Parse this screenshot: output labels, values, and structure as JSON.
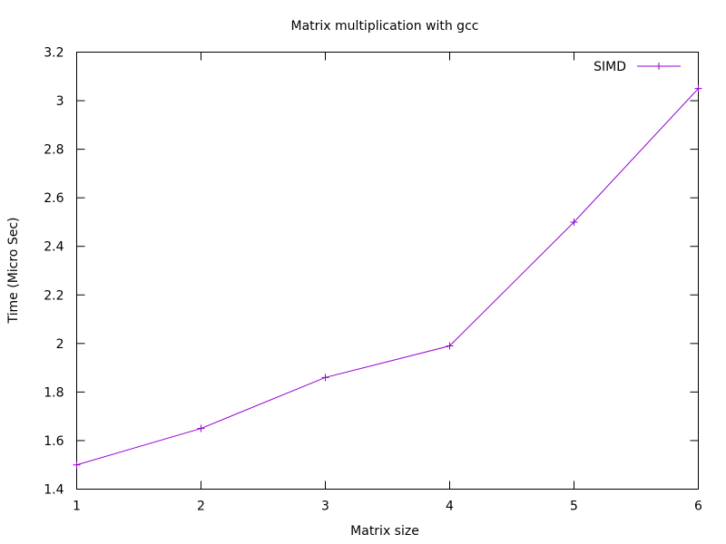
{
  "chart_data": {
    "type": "line",
    "title": "Matrix multiplication with gcc",
    "xlabel": "Matrix size",
    "ylabel": "Time (Micro Sec)",
    "xlim": [
      1,
      6
    ],
    "ylim": [
      1.4,
      3.2
    ],
    "x_ticks": [
      "1",
      "2",
      "3",
      "4",
      "5",
      "6"
    ],
    "y_ticks": [
      "1.4",
      "1.6",
      "1.8",
      "2",
      "2.2",
      "2.4",
      "2.6",
      "2.8",
      "3",
      "3.2"
    ],
    "grid": false,
    "legend_position": "top-right",
    "series": [
      {
        "name": "SIMD",
        "color": "#9400D3",
        "marker": "plus",
        "x": [
          1,
          2,
          3,
          4,
          5,
          6
        ],
        "values": [
          1.5,
          1.65,
          1.86,
          1.99,
          2.5,
          3.05
        ]
      }
    ]
  }
}
